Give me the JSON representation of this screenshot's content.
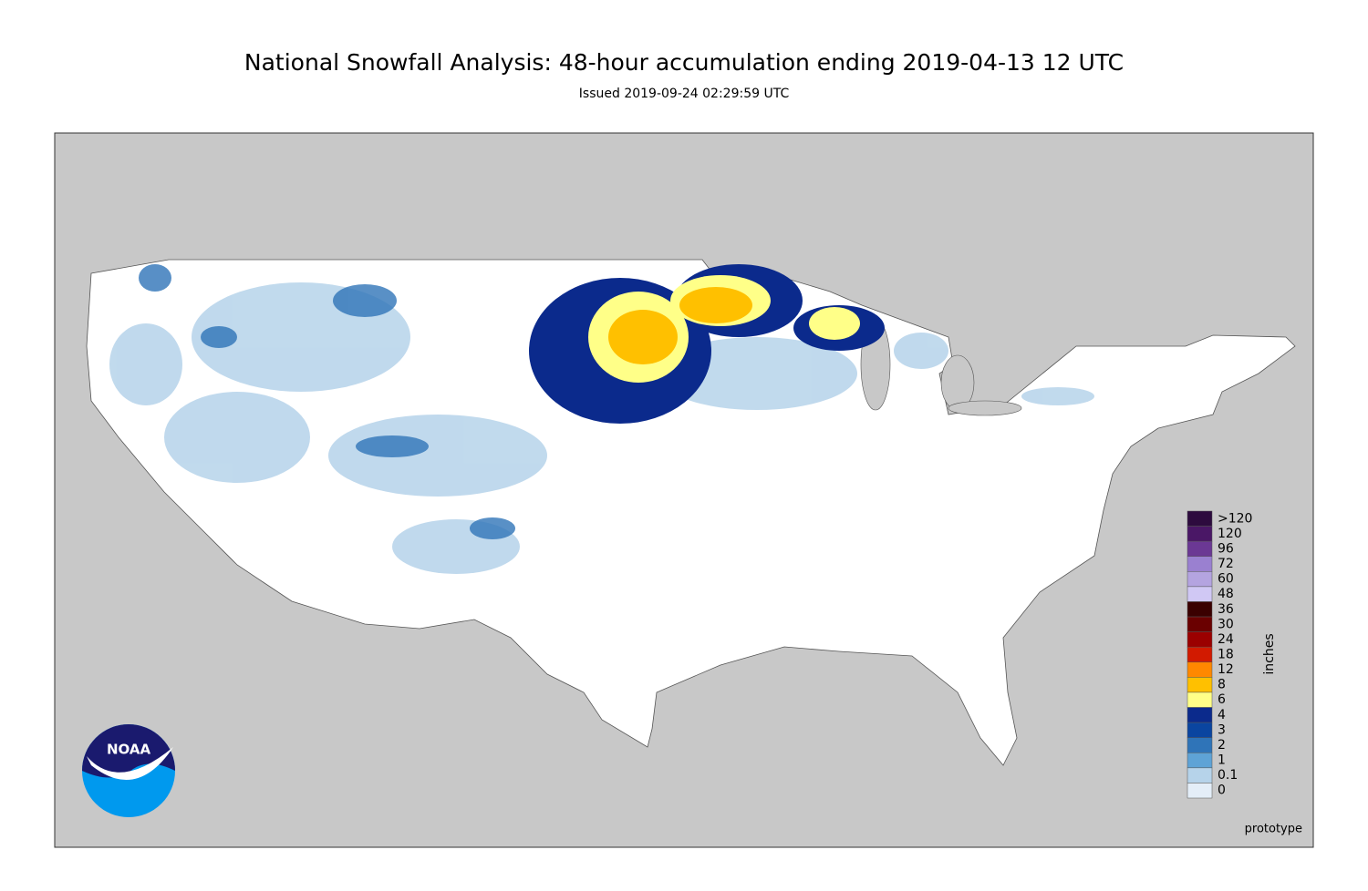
{
  "title": "National Snowfall Analysis: 48-hour accumulation ending 2019-04-13 12 UTC",
  "subtitle": "Issued 2019-09-24 02:29:59 UTC",
  "logo": "NOAA",
  "footer": "prototype",
  "colorbar": {
    "label": "inches",
    "entries": [
      {
        "label": ">120",
        "color": "#2d0b3e"
      },
      {
        "label": "120",
        "color": "#4a1766"
      },
      {
        "label": "96",
        "color": "#6b3894"
      },
      {
        "label": "72",
        "color": "#9a80d0"
      },
      {
        "label": "60",
        "color": "#b4a4e0"
      },
      {
        "label": "48",
        "color": "#d0c8f4"
      },
      {
        "label": "36",
        "color": "#3a0000"
      },
      {
        "label": "30",
        "color": "#6a0000"
      },
      {
        "label": "24",
        "color": "#9b0000"
      },
      {
        "label": "18",
        "color": "#d21a00"
      },
      {
        "label": "12",
        "color": "#ff8800"
      },
      {
        "label": "8",
        "color": "#ffc000"
      },
      {
        "label": "6",
        "color": "#ffff88"
      },
      {
        "label": "4",
        "color": "#0b2a8c"
      },
      {
        "label": "3",
        "color": "#0a45a0"
      },
      {
        "label": "2",
        "color": "#2f74b8"
      },
      {
        "label": "1",
        "color": "#5ea3d6"
      },
      {
        "label": "0.1",
        "color": "#b6d3ea"
      },
      {
        "label": "0",
        "color": "#e4eef8"
      }
    ]
  }
}
